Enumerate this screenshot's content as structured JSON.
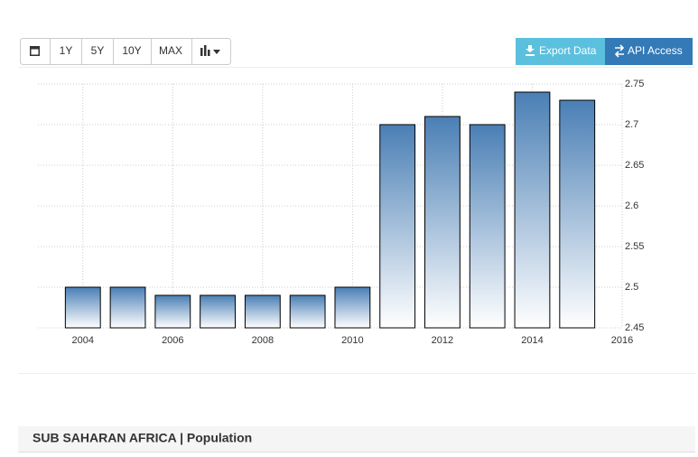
{
  "toolbar": {
    "ranges": [
      "1Y",
      "5Y",
      "10Y",
      "MAX"
    ],
    "export": "Export Data",
    "api": "API Access"
  },
  "chart_data": {
    "type": "bar",
    "title": "SUB SAHARAN AFRICA | Population",
    "x": [
      2004,
      2005,
      2006,
      2007,
      2008,
      2009,
      2010,
      2011,
      2012,
      2013,
      2014,
      2015
    ],
    "values": [
      2.5,
      2.5,
      2.49,
      2.49,
      2.49,
      2.49,
      2.5,
      2.7,
      2.71,
      2.7,
      2.74,
      2.73
    ],
    "color": "#4a7fb5",
    "xlim": [
      2003,
      2016
    ],
    "xticks": [
      2004,
      2006,
      2008,
      2010,
      2012,
      2014,
      2016
    ],
    "ylim": [
      2.45,
      2.75
    ],
    "yticks": [
      2.45,
      2.5,
      2.55,
      2.6,
      2.65,
      2.7,
      2.75
    ],
    "grid": true
  }
}
